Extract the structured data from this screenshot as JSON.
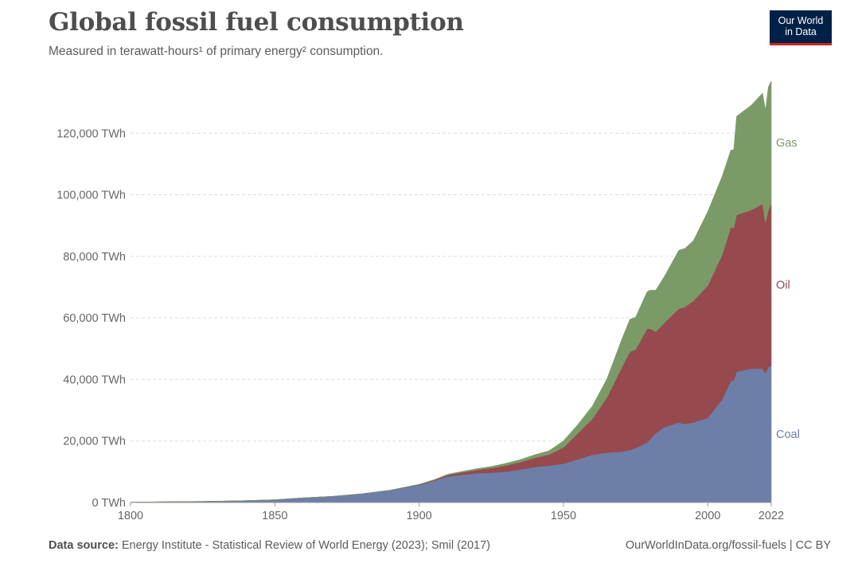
{
  "header": {
    "title": "Global fossil fuel consumption",
    "subtitle": "Measured in terawatt-hours¹ of primary energy² consumption."
  },
  "logo": {
    "line1": "Our World",
    "line2": "in Data"
  },
  "footer": {
    "source_label": "Data source:",
    "source_text": "Energy Institute - Statistical Review of World Energy (2023); Smil (2017)",
    "url_text": "OurWorldInData.org/fossil-fuels | CC BY"
  },
  "chart_data": {
    "type": "area",
    "stacked": true,
    "title": "Global fossil fuel consumption",
    "subtitle": "Measured in terawatt-hours¹ of primary energy² consumption.",
    "xlabel": "",
    "ylabel": "",
    "xlim": [
      1800,
      2022
    ],
    "ylim": [
      0,
      140000
    ],
    "x_ticks": [
      1800,
      1850,
      1900,
      1950,
      2000,
      2022
    ],
    "y_ticks": [
      {
        "value": 0,
        "label": "0 TWh"
      },
      {
        "value": 20000,
        "label": "20,000 TWh"
      },
      {
        "value": 40000,
        "label": "40,000 TWh"
      },
      {
        "value": 60000,
        "label": "60,000 TWh"
      },
      {
        "value": 80000,
        "label": "80,000 TWh"
      },
      {
        "value": 100000,
        "label": "100,000 TWh"
      },
      {
        "value": 120000,
        "label": "120,000 TWh"
      }
    ],
    "grid": "horizontal-dashed",
    "legend": "labels-at-right-end",
    "x": [
      1800,
      1810,
      1820,
      1830,
      1840,
      1850,
      1860,
      1870,
      1880,
      1890,
      1900,
      1905,
      1910,
      1915,
      1920,
      1925,
      1930,
      1935,
      1940,
      1945,
      1950,
      1955,
      1960,
      1965,
      1970,
      1973,
      1975,
      1979,
      1980,
      1982,
      1985,
      1990,
      1992,
      1995,
      2000,
      2005,
      2008,
      2009,
      2010,
      2015,
      2019,
      2020,
      2021,
      2022
    ],
    "series": [
      {
        "name": "Coal",
        "color": "#6d7fa8",
        "values": [
          100,
          200,
          300,
          400,
          600,
          900,
          1500,
          2000,
          2800,
          4000,
          5700,
          7000,
          8500,
          9000,
          9500,
          9700,
          10000,
          10700,
          11500,
          12000,
          12600,
          14000,
          15500,
          16200,
          16500,
          17000,
          17700,
          19500,
          20500,
          22500,
          24500,
          26000,
          25500,
          26000,
          27500,
          33500,
          39500,
          39600,
          42500,
          43500,
          43500,
          42000,
          44000,
          44500
        ]
      },
      {
        "name": "Oil",
        "color": "#964a4e",
        "values": [
          0,
          0,
          0,
          0,
          0,
          0,
          0,
          0,
          0,
          0,
          150,
          250,
          500,
          800,
          1100,
          1500,
          2000,
          2400,
          3000,
          3600,
          5300,
          8500,
          11700,
          17800,
          27000,
          32000,
          32000,
          37000,
          36000,
          33000,
          34000,
          37000,
          38000,
          39500,
          43000,
          47000,
          50000,
          49500,
          51000,
          51500,
          53500,
          49000,
          51000,
          52500
        ]
      },
      {
        "name": "Gas",
        "color": "#7a9b67",
        "values": [
          0,
          0,
          0,
          0,
          0,
          0,
          0,
          0,
          0,
          0,
          50,
          100,
          200,
          300,
          400,
          500,
          700,
          800,
          1000,
          1200,
          2100,
          2800,
          4100,
          6000,
          9000,
          10500,
          10500,
          12000,
          12500,
          13500,
          15000,
          19000,
          19000,
          19500,
          24000,
          25500,
          25000,
          25500,
          32000,
          34000,
          36000,
          36500,
          40000,
          40000
        ]
      }
    ],
    "end_labels": [
      {
        "series": "Gas",
        "label": "Gas"
      },
      {
        "series": "Oil",
        "label": "Oil"
      },
      {
        "series": "Coal",
        "label": "Coal"
      }
    ]
  }
}
